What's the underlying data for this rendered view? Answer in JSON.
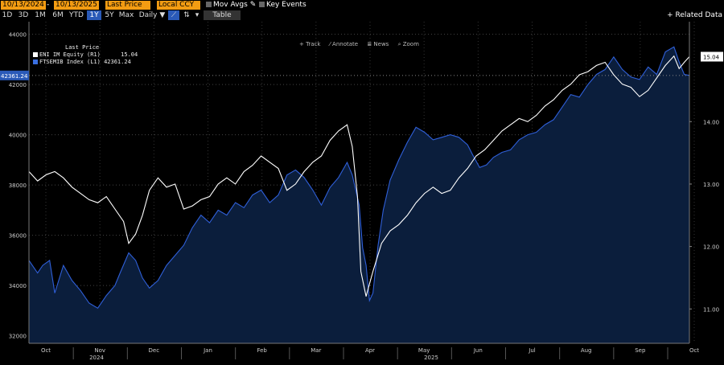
{
  "toolbar": {
    "start_date": "10/13/2024",
    "end_date": "10/13/2025",
    "field": "Last Price",
    "currency": "Local CCY",
    "mov_avgs": "Mov Avgs",
    "key_events": "Key Events"
  },
  "ranges": [
    "1D",
    "3D",
    "1M",
    "6M",
    "YTD",
    "1Y",
    "5Y",
    "Max"
  ],
  "active_range": "1Y",
  "periodicity": "Daily ▼",
  "table_label": "Table",
  "related_data": "+ Related Data",
  "chart_tools": [
    "+ Track",
    "⁄ Annotate",
    "≣ News",
    "⌕ Zoom"
  ],
  "legend": {
    "header": "Last Price",
    "items": [
      {
        "label": "ENI IM Equity  (R1)",
        "value": "15.04",
        "color": "#ffffff"
      },
      {
        "label": "FTSEMIB Index  (L1)",
        "value": "42361.24",
        "color": "#3a6fe0"
      }
    ]
  },
  "colors": {
    "fill": "#0b1e3c",
    "white_line": "#ffffff",
    "blue_line": "#2f5fd8",
    "left_tag": "#2a5ab8",
    "right_tag": "#ffffff"
  },
  "chart_data": {
    "type": "line",
    "left_axis": {
      "ticks": [
        32000,
        34000,
        36000,
        38000,
        40000,
        42000,
        44000
      ],
      "min": 31700,
      "max": 44500,
      "tag": "42361.24"
    },
    "right_axis": {
      "ticks": [
        "11.00",
        "12.00",
        "13.00",
        "14.00"
      ],
      "min": 10.45,
      "max": 15.6,
      "tag": "15.04"
    },
    "x_labels": [
      "Oct",
      "Nov",
      "Dec",
      "Jan",
      "Feb",
      "Mar",
      "Apr",
      "May",
      "Jun",
      "Jul",
      "Aug",
      "Sep",
      "Oct"
    ],
    "year_labels": [
      "2024",
      "2025"
    ],
    "grid": true,
    "series": [
      {
        "name": "FTSEMIB Index (L1)",
        "axis": "left",
        "points": [
          [
            0,
            35000
          ],
          [
            5,
            34500
          ],
          [
            8,
            34800
          ],
          [
            12,
            35000
          ],
          [
            15,
            33700
          ],
          [
            20,
            34800
          ],
          [
            25,
            34200
          ],
          [
            30,
            33800
          ],
          [
            35,
            33300
          ],
          [
            40,
            33100
          ],
          [
            45,
            33600
          ],
          [
            50,
            34000
          ],
          [
            53,
            34500
          ],
          [
            58,
            35300
          ],
          [
            62,
            35000
          ],
          [
            66,
            34300
          ],
          [
            70,
            33900
          ],
          [
            75,
            34200
          ],
          [
            80,
            34800
          ],
          [
            85,
            35200
          ],
          [
            90,
            35600
          ],
          [
            95,
            36300
          ],
          [
            100,
            36800
          ],
          [
            105,
            36500
          ],
          [
            110,
            37000
          ],
          [
            115,
            36800
          ],
          [
            120,
            37300
          ],
          [
            125,
            37100
          ],
          [
            130,
            37600
          ],
          [
            135,
            37800
          ],
          [
            140,
            37300
          ],
          [
            145,
            37600
          ],
          [
            150,
            38400
          ],
          [
            155,
            38600
          ],
          [
            160,
            38300
          ],
          [
            165,
            37800
          ],
          [
            170,
            37200
          ],
          [
            175,
            37900
          ],
          [
            180,
            38300
          ],
          [
            185,
            38900
          ],
          [
            188,
            38400
          ],
          [
            192,
            37200
          ],
          [
            194,
            35500
          ],
          [
            196,
            34800
          ],
          [
            198,
            33400
          ],
          [
            200,
            33700
          ],
          [
            203,
            35600
          ],
          [
            206,
            37000
          ],
          [
            210,
            38200
          ],
          [
            215,
            39000
          ],
          [
            220,
            39700
          ],
          [
            225,
            40300
          ],
          [
            230,
            40100
          ],
          [
            235,
            39800
          ],
          [
            240,
            39900
          ],
          [
            245,
            40000
          ],
          [
            250,
            39900
          ],
          [
            255,
            39600
          ],
          [
            258,
            39200
          ],
          [
            262,
            38700
          ],
          [
            266,
            38800
          ],
          [
            270,
            39100
          ],
          [
            275,
            39300
          ],
          [
            280,
            39400
          ],
          [
            285,
            39800
          ],
          [
            290,
            40000
          ],
          [
            295,
            40100
          ],
          [
            300,
            40400
          ],
          [
            305,
            40600
          ],
          [
            310,
            41100
          ],
          [
            315,
            41600
          ],
          [
            320,
            41500
          ],
          [
            325,
            42000
          ],
          [
            330,
            42400
          ],
          [
            335,
            42600
          ],
          [
            340,
            43100
          ],
          [
            345,
            42600
          ],
          [
            350,
            42300
          ],
          [
            355,
            42200
          ],
          [
            360,
            42700
          ],
          [
            365,
            42400
          ],
          [
            370,
            43300
          ],
          [
            375,
            43500
          ],
          [
            378,
            42900
          ],
          [
            381,
            42400
          ],
          [
            384,
            42361
          ]
        ]
      },
      {
        "name": "ENI IM Equity (R1)",
        "axis": "right",
        "points": [
          [
            0,
            13.2
          ],
          [
            5,
            13.05
          ],
          [
            10,
            13.15
          ],
          [
            15,
            13.2
          ],
          [
            20,
            13.1
          ],
          [
            25,
            12.95
          ],
          [
            30,
            12.85
          ],
          [
            35,
            12.75
          ],
          [
            40,
            12.7
          ],
          [
            45,
            12.8
          ],
          [
            50,
            12.6
          ],
          [
            55,
            12.4
          ],
          [
            58,
            12.05
          ],
          [
            62,
            12.2
          ],
          [
            66,
            12.5
          ],
          [
            70,
            12.9
          ],
          [
            75,
            13.1
          ],
          [
            80,
            12.95
          ],
          [
            85,
            13.0
          ],
          [
            90,
            12.6
          ],
          [
            95,
            12.65
          ],
          [
            100,
            12.75
          ],
          [
            105,
            12.8
          ],
          [
            110,
            13.0
          ],
          [
            115,
            13.1
          ],
          [
            120,
            13.0
          ],
          [
            125,
            13.2
          ],
          [
            130,
            13.3
          ],
          [
            135,
            13.45
          ],
          [
            140,
            13.35
          ],
          [
            145,
            13.25
          ],
          [
            150,
            12.9
          ],
          [
            155,
            13.0
          ],
          [
            160,
            13.2
          ],
          [
            165,
            13.35
          ],
          [
            170,
            13.45
          ],
          [
            175,
            13.7
          ],
          [
            180,
            13.85
          ],
          [
            185,
            13.95
          ],
          [
            188,
            13.6
          ],
          [
            191,
            12.8
          ],
          [
            193,
            11.6
          ],
          [
            196,
            11.2
          ],
          [
            198,
            11.4
          ],
          [
            200,
            11.6
          ],
          [
            205,
            12.05
          ],
          [
            210,
            12.25
          ],
          [
            215,
            12.35
          ],
          [
            220,
            12.5
          ],
          [
            225,
            12.7
          ],
          [
            230,
            12.85
          ],
          [
            235,
            12.95
          ],
          [
            240,
            12.85
          ],
          [
            245,
            12.9
          ],
          [
            250,
            13.1
          ],
          [
            255,
            13.25
          ],
          [
            260,
            13.45
          ],
          [
            265,
            13.55
          ],
          [
            270,
            13.7
          ],
          [
            275,
            13.85
          ],
          [
            280,
            13.95
          ],
          [
            285,
            14.05
          ],
          [
            290,
            14.0
          ],
          [
            295,
            14.1
          ],
          [
            300,
            14.25
          ],
          [
            305,
            14.35
          ],
          [
            310,
            14.5
          ],
          [
            315,
            14.6
          ],
          [
            320,
            14.75
          ],
          [
            325,
            14.8
          ],
          [
            330,
            14.9
          ],
          [
            335,
            14.95
          ],
          [
            340,
            14.75
          ],
          [
            345,
            14.6
          ],
          [
            350,
            14.55
          ],
          [
            355,
            14.4
          ],
          [
            360,
            14.5
          ],
          [
            365,
            14.7
          ],
          [
            370,
            14.9
          ],
          [
            375,
            15.05
          ],
          [
            378,
            14.85
          ],
          [
            381,
            14.95
          ],
          [
            384,
            15.04
          ]
        ]
      }
    ]
  }
}
